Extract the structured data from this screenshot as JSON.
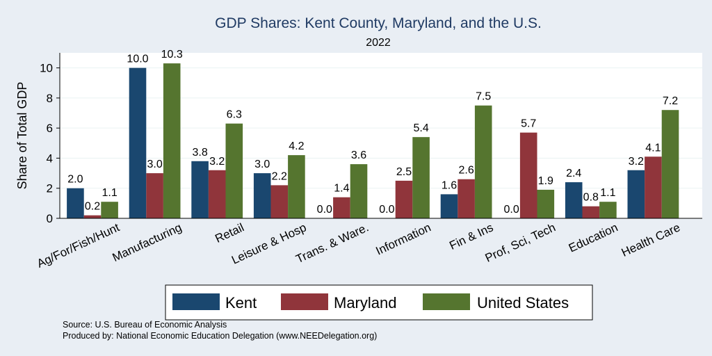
{
  "chart_data": {
    "type": "bar",
    "title": "GDP Shares: Kent County, Maryland, and the U.S.",
    "subtitle": "2022",
    "ylabel": "Share of Total GDP",
    "xlabel": "",
    "ylim": [
      0,
      11
    ],
    "yticks": [
      0,
      2,
      4,
      6,
      8,
      10
    ],
    "grid": true,
    "legend_position": "bottom",
    "categories": [
      "Ag/For/Fish/Hunt",
      "Manufacturing",
      "Retail",
      "Leisure & Hosp",
      "Trans. & Ware.",
      "Information",
      "Fin & Ins",
      "Prof, Sci, Tech",
      "Education",
      "Health Care"
    ],
    "series": [
      {
        "name": "Kent",
        "color": "#1a476f",
        "values": [
          2.0,
          10.0,
          3.8,
          3.0,
          0.0,
          0.0,
          1.6,
          0.0,
          2.4,
          3.2
        ]
      },
      {
        "name": "Maryland",
        "color": "#90353b",
        "values": [
          0.2,
          3.0,
          3.2,
          2.2,
          1.4,
          2.5,
          2.6,
          5.7,
          0.8,
          4.1
        ]
      },
      {
        "name": "United States",
        "color": "#55752f",
        "values": [
          1.1,
          10.3,
          6.3,
          4.2,
          3.6,
          5.4,
          7.5,
          1.9,
          1.1,
          7.2
        ]
      }
    ]
  },
  "source_lines": [
    "Source: U.S. Bureau of Economic Analysis",
    "Produced by: National Economic Education Delegation (www.NEEDelegation.org)"
  ]
}
